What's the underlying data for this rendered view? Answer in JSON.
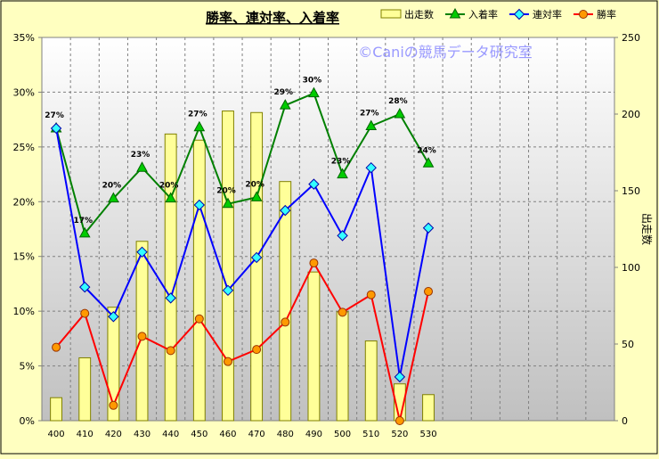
{
  "chart_data": {
    "type": "combo",
    "title": "勝率、連対率、入着率",
    "watermark": "©Caniの競馬データ研究室",
    "categories": [
      "400",
      "410",
      "420",
      "430",
      "440",
      "450",
      "460",
      "470",
      "480",
      "490",
      "500",
      "510",
      "520",
      "530"
    ],
    "x_extra_slots": 6,
    "y_left": {
      "min": 0,
      "max": 35,
      "step": 5,
      "unit": "%",
      "ticks": [
        "0%",
        "5%",
        "10%",
        "15%",
        "20%",
        "25%",
        "30%",
        "35%"
      ]
    },
    "y_right": {
      "min": 0,
      "max": 250,
      "step": 50,
      "label": "出走数",
      "ticks": [
        "0",
        "50",
        "100",
        "150",
        "200",
        "250"
      ]
    },
    "grid": true,
    "legend_position": "top-right",
    "series": [
      {
        "name": "出走数",
        "kind": "bar",
        "axis": "right",
        "color": "#ffff99",
        "stroke": "#808000",
        "values": [
          15,
          41,
          74,
          117,
          187,
          183,
          202,
          201,
          156,
          97,
          71,
          52,
          24,
          17
        ]
      },
      {
        "name": "入着率",
        "kind": "line",
        "axis": "left",
        "color": "#008000",
        "marker": "triangle",
        "marker_fill": "#00cc00",
        "values": [
          26.7,
          17.1,
          20.3,
          23.1,
          20.3,
          26.8,
          19.8,
          20.4,
          28.8,
          29.9,
          22.5,
          26.9,
          28.0,
          23.5
        ],
        "labels": [
          "27%",
          "17%",
          "20%",
          "23%",
          "20%",
          "27%",
          "20%",
          "20%",
          "29%",
          "30%",
          "23%",
          "27%",
          "28%",
          "24%"
        ]
      },
      {
        "name": "連対率",
        "kind": "line",
        "axis": "left",
        "color": "#0000ff",
        "marker": "diamond",
        "marker_fill": "#33ffff",
        "values": [
          26.7,
          12.2,
          9.5,
          15.4,
          11.2,
          19.7,
          11.9,
          14.9,
          19.2,
          21.6,
          16.9,
          23.1,
          4.0,
          17.6
        ]
      },
      {
        "name": "勝率",
        "kind": "line",
        "axis": "left",
        "color": "#ff0000",
        "marker": "circle",
        "marker_fill": "#ff9900",
        "values": [
          6.7,
          9.8,
          1.4,
          7.7,
          6.4,
          9.3,
          5.4,
          6.5,
          9.0,
          14.4,
          9.9,
          11.5,
          0.0,
          11.8
        ]
      }
    ]
  }
}
